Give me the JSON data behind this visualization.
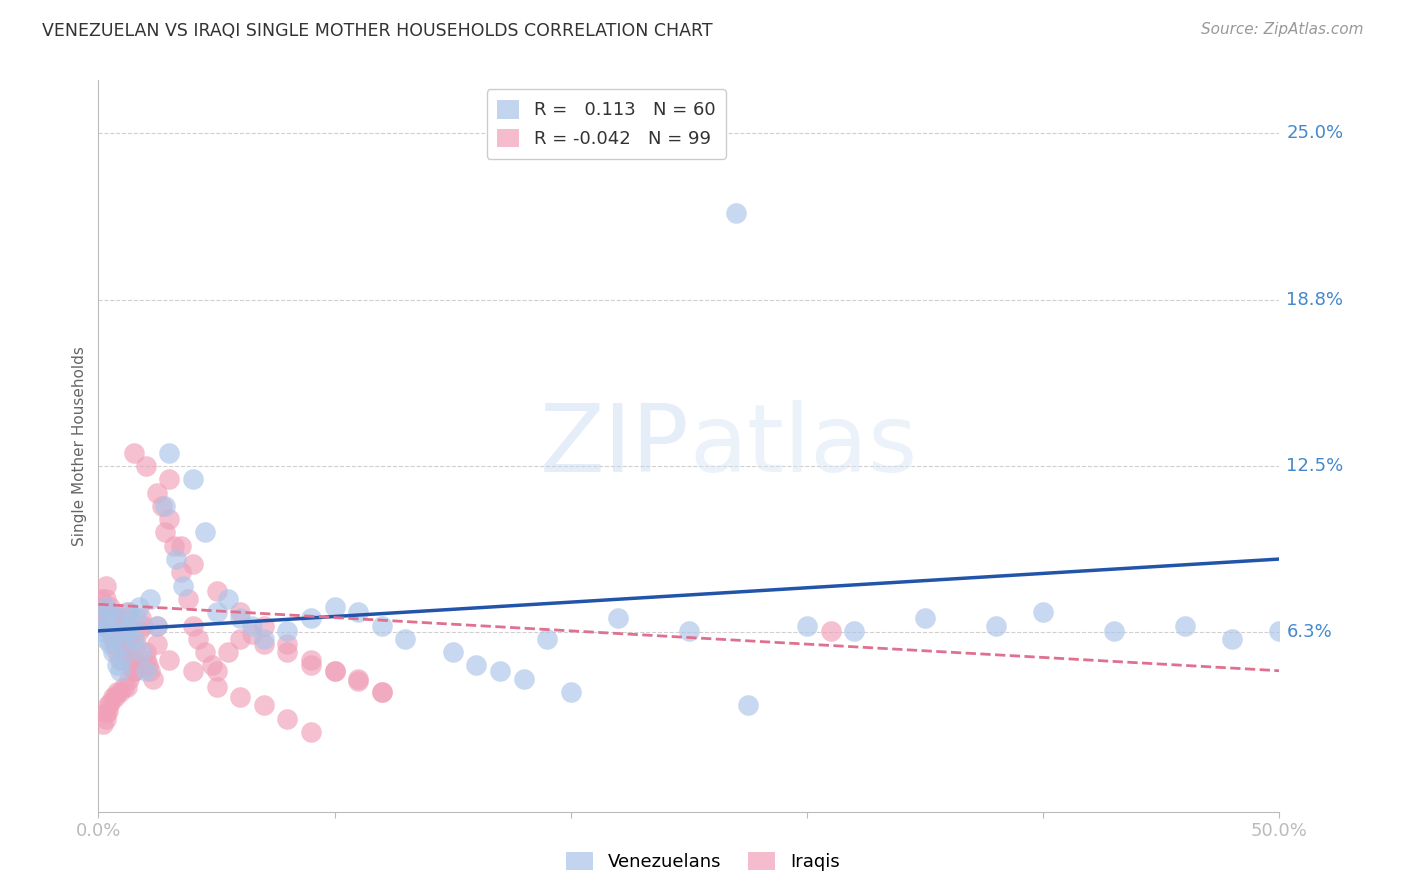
{
  "title": "VENEZUELAN VS IRAQI SINGLE MOTHER HOUSEHOLDS CORRELATION CHART",
  "source": "Source: ZipAtlas.com",
  "ylabel": "Single Mother Households",
  "xlim": [
    0.0,
    0.5
  ],
  "ylim": [
    -0.005,
    0.27
  ],
  "yticks": [
    0.0,
    0.0625,
    0.125,
    0.1875,
    0.25
  ],
  "ytick_labels": [
    "",
    "6.3%",
    "12.5%",
    "18.8%",
    "25.0%"
  ],
  "xticks": [
    0.0,
    0.1,
    0.2,
    0.3,
    0.4,
    0.5
  ],
  "xtick_labels": [
    "0.0%",
    "",
    "",
    "",
    "",
    "50.0%"
  ],
  "background_color": "#ffffff",
  "grid_color": "#d0d0d0",
  "venezuelan_color": "#aac4e8",
  "iraqi_color": "#f0a0b8",
  "trendline_venezuelan_color": "#2255aa",
  "trendline_iraqi_color": "#e07090",
  "R_venezuelan": 0.113,
  "N_venezuelan": 60,
  "R_iraqi": -0.042,
  "N_iraqi": 99,
  "watermark_zip": "ZIP",
  "watermark_atlas": "atlas",
  "ven_trend_x0": 0.0,
  "ven_trend_y0": 0.063,
  "ven_trend_x1": 0.5,
  "ven_trend_y1": 0.09,
  "iraqi_trend_x0": 0.0,
  "iraqi_trend_y0": 0.073,
  "iraqi_trend_x1": 0.5,
  "iraqi_trend_y1": 0.048,
  "venezuelan_points_x": [
    0.001,
    0.002,
    0.003,
    0.003,
    0.004,
    0.005,
    0.005,
    0.006,
    0.007,
    0.008,
    0.008,
    0.009,
    0.01,
    0.011,
    0.012,
    0.013,
    0.014,
    0.015,
    0.016,
    0.017,
    0.018,
    0.02,
    0.022,
    0.025,
    0.028,
    0.03,
    0.033,
    0.036,
    0.04,
    0.045,
    0.05,
    0.055,
    0.06,
    0.065,
    0.07,
    0.08,
    0.09,
    0.1,
    0.11,
    0.12,
    0.13,
    0.15,
    0.16,
    0.17,
    0.18,
    0.19,
    0.2,
    0.22,
    0.25,
    0.27,
    0.275,
    0.3,
    0.32,
    0.35,
    0.38,
    0.4,
    0.43,
    0.46,
    0.48,
    0.5
  ],
  "venezuelan_points_y": [
    0.063,
    0.068,
    0.072,
    0.06,
    0.065,
    0.058,
    0.07,
    0.055,
    0.062,
    0.068,
    0.05,
    0.048,
    0.052,
    0.058,
    0.063,
    0.07,
    0.065,
    0.06,
    0.068,
    0.072,
    0.055,
    0.048,
    0.075,
    0.065,
    0.11,
    0.13,
    0.09,
    0.08,
    0.12,
    0.1,
    0.07,
    0.075,
    0.068,
    0.065,
    0.06,
    0.063,
    0.068,
    0.072,
    0.07,
    0.065,
    0.06,
    0.055,
    0.05,
    0.048,
    0.045,
    0.06,
    0.04,
    0.068,
    0.063,
    0.22,
    0.035,
    0.065,
    0.063,
    0.068,
    0.065,
    0.07,
    0.063,
    0.065,
    0.06,
    0.063
  ],
  "iraqi_points_x": [
    0.001,
    0.001,
    0.002,
    0.002,
    0.003,
    0.003,
    0.003,
    0.004,
    0.004,
    0.005,
    0.005,
    0.005,
    0.006,
    0.006,
    0.007,
    0.007,
    0.008,
    0.008,
    0.009,
    0.009,
    0.01,
    0.01,
    0.011,
    0.011,
    0.012,
    0.012,
    0.013,
    0.013,
    0.014,
    0.015,
    0.015,
    0.016,
    0.017,
    0.018,
    0.019,
    0.02,
    0.021,
    0.022,
    0.023,
    0.025,
    0.027,
    0.028,
    0.03,
    0.032,
    0.035,
    0.038,
    0.04,
    0.042,
    0.045,
    0.048,
    0.05,
    0.055,
    0.06,
    0.065,
    0.07,
    0.08,
    0.09,
    0.1,
    0.11,
    0.12,
    0.015,
    0.02,
    0.025,
    0.03,
    0.035,
    0.04,
    0.05,
    0.06,
    0.07,
    0.08,
    0.09,
    0.1,
    0.11,
    0.12,
    0.015,
    0.012,
    0.008,
    0.006,
    0.004,
    0.003,
    0.002,
    0.003,
    0.004,
    0.005,
    0.007,
    0.009,
    0.011,
    0.013,
    0.015,
    0.02,
    0.025,
    0.03,
    0.04,
    0.05,
    0.06,
    0.07,
    0.08,
    0.09,
    0.31
  ],
  "iraqi_points_y": [
    0.068,
    0.075,
    0.065,
    0.072,
    0.068,
    0.075,
    0.08,
    0.065,
    0.07,
    0.063,
    0.068,
    0.072,
    0.06,
    0.065,
    0.058,
    0.063,
    0.055,
    0.068,
    0.052,
    0.06,
    0.058,
    0.065,
    0.06,
    0.068,
    0.055,
    0.07,
    0.052,
    0.06,
    0.05,
    0.048,
    0.052,
    0.058,
    0.063,
    0.068,
    0.065,
    0.055,
    0.05,
    0.048,
    0.045,
    0.065,
    0.11,
    0.1,
    0.12,
    0.095,
    0.085,
    0.075,
    0.065,
    0.06,
    0.055,
    0.05,
    0.048,
    0.055,
    0.06,
    0.062,
    0.058,
    0.055,
    0.05,
    0.048,
    0.045,
    0.04,
    0.13,
    0.125,
    0.115,
    0.105,
    0.095,
    0.088,
    0.078,
    0.07,
    0.065,
    0.058,
    0.052,
    0.048,
    0.044,
    0.04,
    0.048,
    0.042,
    0.04,
    0.038,
    0.035,
    0.032,
    0.028,
    0.03,
    0.033,
    0.036,
    0.038,
    0.04,
    0.042,
    0.045,
    0.048,
    0.052,
    0.058,
    0.052,
    0.048,
    0.042,
    0.038,
    0.035,
    0.03,
    0.025,
    0.063
  ]
}
